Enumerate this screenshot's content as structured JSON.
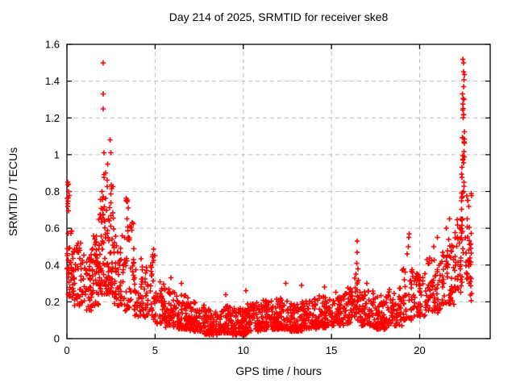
{
  "chart_data": {
    "type": "scatter",
    "title": "Day 214 of 2025, SRMTID for receiver ske8",
    "xlabel": "GPS time / hours",
    "ylabel": "SRMTID / TECUs",
    "xlim": [
      0,
      24
    ],
    "ylim": [
      0,
      1.6
    ],
    "xtick_values": [
      0,
      5,
      10,
      15,
      20
    ],
    "xtick_labels": [
      "0",
      "5",
      "10",
      "15",
      "20"
    ],
    "ytick_values": [
      0,
      0.2,
      0.4,
      0.6,
      0.8,
      1.0,
      1.2,
      1.4,
      1.6
    ],
    "ytick_labels": [
      "0",
      "0.2",
      "0.4",
      "0.6",
      "0.8",
      "1",
      "1.2",
      "1.4",
      "1.6"
    ],
    "grid": true,
    "grid_color": "#c0c0c0",
    "border_color": "#000000",
    "marker": "plus",
    "marker_color": "#ff0000",
    "legend": "none",
    "description": "Dense scatter of SRMTID values vs GPS time: high variable values 0-5h (peaks ~1.5 near 2h), quiet low band ~0.05-0.2 TECUs from 5h to 19h with small spikes near 16.5h and 19.4h, rising after 20h to a tall spike reaching ~1.5 near 22.5h",
    "point_bins": [
      [
        0.0,
        0.3,
        0.22,
        0.62,
        30,
        1.2
      ],
      [
        0.02,
        0.15,
        0.62,
        0.86,
        8,
        1.0
      ],
      [
        0.3,
        0.8,
        0.18,
        0.52,
        45,
        1.3
      ],
      [
        0.8,
        1.4,
        0.15,
        0.46,
        48,
        1.3
      ],
      [
        1.4,
        1.8,
        0.17,
        0.56,
        45,
        1.2
      ],
      [
        1.8,
        2.3,
        0.24,
        0.72,
        60,
        1.2
      ],
      [
        1.9,
        2.3,
        0.72,
        0.9,
        10,
        1.0
      ],
      [
        2.3,
        2.7,
        0.24,
        0.66,
        45,
        1.3
      ],
      [
        2.4,
        2.6,
        0.66,
        0.84,
        8,
        1.0
      ],
      [
        2.7,
        3.2,
        0.18,
        0.56,
        42,
        1.3
      ],
      [
        3.2,
        3.8,
        0.15,
        0.64,
        48,
        1.3
      ],
      [
        3.3,
        3.6,
        0.64,
        0.77,
        7,
        1.0
      ],
      [
        3.8,
        4.4,
        0.12,
        0.44,
        42,
        1.4
      ],
      [
        4.4,
        5.0,
        0.1,
        0.4,
        40,
        1.5
      ],
      [
        4.8,
        5.0,
        0.38,
        0.5,
        6,
        1.0
      ],
      [
        5.0,
        5.6,
        0.08,
        0.32,
        45,
        1.6
      ],
      [
        5.6,
        6.2,
        0.06,
        0.28,
        48,
        1.6
      ],
      [
        6.2,
        7.0,
        0.05,
        0.24,
        75,
        1.7
      ],
      [
        7.0,
        7.8,
        0.04,
        0.2,
        75,
        1.7
      ],
      [
        7.8,
        8.6,
        0.02,
        0.16,
        75,
        1.6
      ],
      [
        8.6,
        9.4,
        0.03,
        0.18,
        75,
        1.6
      ],
      [
        9.4,
        10.2,
        0.02,
        0.17,
        75,
        1.6
      ],
      [
        10.2,
        11.0,
        0.04,
        0.2,
        75,
        1.6
      ],
      [
        11.0,
        11.8,
        0.05,
        0.21,
        75,
        1.6
      ],
      [
        11.8,
        12.6,
        0.05,
        0.22,
        75,
        1.6
      ],
      [
        12.6,
        13.4,
        0.04,
        0.21,
        75,
        1.6
      ],
      [
        13.4,
        14.2,
        0.05,
        0.22,
        75,
        1.6
      ],
      [
        14.2,
        15.0,
        0.06,
        0.24,
        75,
        1.6
      ],
      [
        15.0,
        15.8,
        0.07,
        0.26,
        70,
        1.6
      ],
      [
        15.8,
        16.3,
        0.08,
        0.28,
        40,
        1.5
      ],
      [
        16.3,
        16.6,
        0.1,
        0.34,
        25,
        1.2
      ],
      [
        16.6,
        17.4,
        0.07,
        0.26,
        65,
        1.6
      ],
      [
        17.4,
        18.2,
        0.05,
        0.24,
        65,
        1.6
      ],
      [
        18.2,
        19.0,
        0.07,
        0.28,
        60,
        1.5
      ],
      [
        19.0,
        19.6,
        0.1,
        0.38,
        42,
        1.4
      ],
      [
        19.6,
        20.4,
        0.12,
        0.36,
        55,
        1.5
      ],
      [
        20.4,
        21.2,
        0.14,
        0.44,
        58,
        1.4
      ],
      [
        21.2,
        22.0,
        0.18,
        0.54,
        58,
        1.3
      ],
      [
        22.0,
        22.4,
        0.25,
        0.66,
        38,
        1.2
      ],
      [
        22.35,
        22.6,
        0.45,
        1.05,
        26,
        1.1
      ],
      [
        22.4,
        22.55,
        1.05,
        1.44,
        18,
        1.0
      ],
      [
        22.6,
        22.95,
        0.3,
        0.8,
        32,
        1.2
      ],
      [
        22.85,
        23.0,
        0.2,
        0.46,
        10,
        1.0
      ]
    ],
    "outlier_points": [
      [
        2.05,
        1.5
      ],
      [
        2.05,
        1.33
      ],
      [
        2.06,
        1.25
      ],
      [
        2.45,
        1.08
      ],
      [
        2.1,
        1.01
      ],
      [
        2.5,
        1.01
      ],
      [
        2.3,
        0.95
      ],
      [
        0.05,
        0.85
      ],
      [
        0.08,
        0.8
      ],
      [
        0.05,
        0.72
      ],
      [
        16.45,
        0.53
      ],
      [
        16.45,
        0.47
      ],
      [
        16.44,
        0.41
      ],
      [
        16.5,
        0.38
      ],
      [
        16.4,
        0.35
      ],
      [
        19.4,
        0.57
      ],
      [
        19.38,
        0.55
      ],
      [
        19.35,
        0.5
      ],
      [
        19.3,
        0.46
      ],
      [
        22.45,
        1.52
      ],
      [
        22.48,
        1.5
      ],
      [
        22.5,
        1.45
      ],
      [
        12.4,
        0.3
      ],
      [
        13.3,
        0.29
      ],
      [
        10.15,
        0.26
      ],
      [
        9.0,
        0.24
      ],
      [
        17.0,
        0.3
      ],
      [
        14.6,
        0.28
      ],
      [
        6.5,
        0.3
      ],
      [
        5.9,
        0.33
      ],
      [
        21.0,
        0.55
      ],
      [
        20.8,
        0.5
      ],
      [
        21.5,
        0.6
      ],
      [
        21.7,
        0.65
      ]
    ]
  }
}
